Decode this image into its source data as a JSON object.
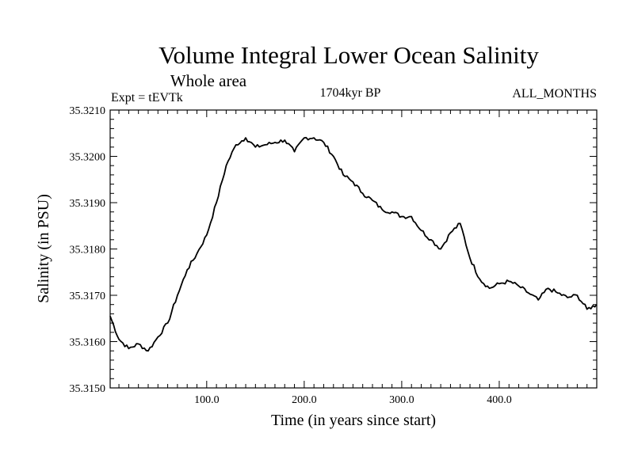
{
  "chart_data": {
    "type": "line",
    "title": "Volume Integral Lower Ocean Salinity",
    "subtitle": "Whole area",
    "experiment": "Expt = tEVTk",
    "period": "1704kyr BP",
    "months": "ALL_MONTHS",
    "xlabel": "Time (in years since start)",
    "ylabel": "Salinity (in PSU)",
    "xlim": [
      1,
      500
    ],
    "ylim": [
      35.315,
      35.321
    ],
    "xticks": [
      100,
      200,
      300,
      400
    ],
    "xtick_labels": [
      "100.0",
      "200.0",
      "300.0",
      "400.0"
    ],
    "yticks": [
      35.315,
      35.316,
      35.317,
      35.318,
      35.319,
      35.32,
      35.321
    ],
    "ytick_labels": [
      "35.3150",
      "35.3160",
      "35.3170",
      "35.3180",
      "35.3190",
      "35.3200",
      "35.3210"
    ],
    "grid": false,
    "series": [
      {
        "name": "Salinity",
        "x": [
          1,
          10,
          20,
          30,
          40,
          50,
          60,
          70,
          80,
          90,
          100,
          110,
          120,
          130,
          140,
          150,
          160,
          170,
          180,
          190,
          200,
          210,
          220,
          230,
          240,
          250,
          260,
          270,
          280,
          290,
          300,
          310,
          320,
          330,
          340,
          350,
          360,
          370,
          380,
          390,
          400,
          410,
          420,
          430,
          440,
          450,
          460,
          470,
          480,
          490,
          500
        ],
        "values": [
          35.31655,
          35.31605,
          35.31585,
          35.31595,
          35.3158,
          35.3161,
          35.3164,
          35.317,
          35.31755,
          35.3179,
          35.3183,
          35.319,
          35.3198,
          35.32025,
          35.3204,
          35.3202,
          35.32025,
          35.3203,
          35.32035,
          35.3201,
          35.3204,
          35.3204,
          35.3203,
          35.32,
          35.3196,
          35.31945,
          35.3192,
          35.31905,
          35.31885,
          35.3188,
          35.3187,
          35.3187,
          35.3184,
          35.3182,
          35.318,
          35.31835,
          35.31855,
          35.3178,
          35.31735,
          35.31715,
          35.31725,
          35.3173,
          35.3172,
          35.31705,
          35.3169,
          35.31715,
          35.31705,
          35.31695,
          35.317,
          35.3167,
          35.3168
        ]
      }
    ]
  }
}
